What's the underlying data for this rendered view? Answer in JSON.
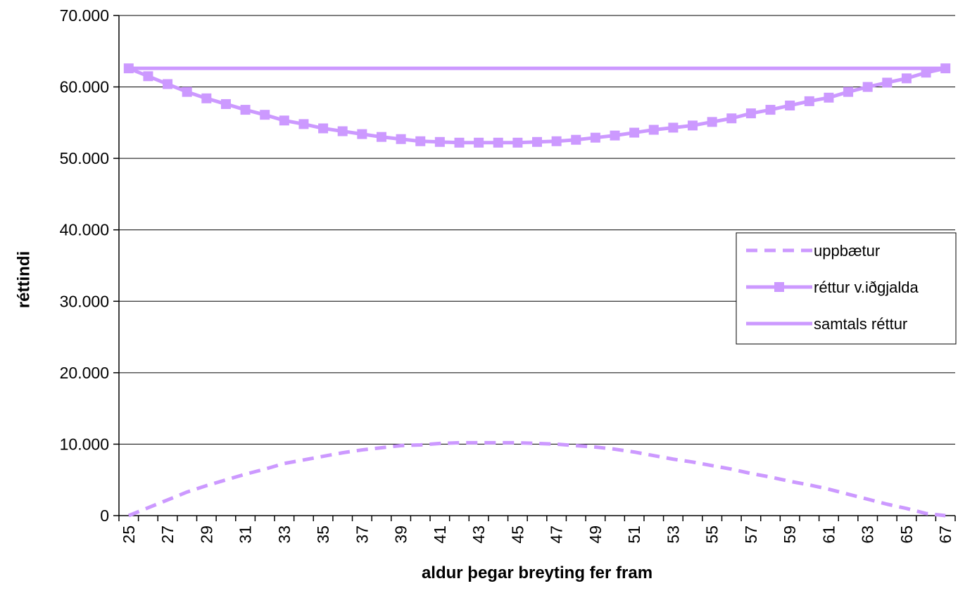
{
  "chart_data": {
    "type": "line",
    "title": "",
    "xlabel": "aldur þegar breyting fer fram",
    "ylabel": "réttindi",
    "ylim": [
      0,
      70000
    ],
    "grid": true,
    "legend_position": "right",
    "x": [
      25,
      26,
      27,
      28,
      29,
      30,
      31,
      32,
      33,
      34,
      35,
      36,
      37,
      38,
      39,
      40,
      41,
      42,
      43,
      44,
      45,
      46,
      47,
      48,
      49,
      50,
      51,
      52,
      53,
      54,
      55,
      56,
      57,
      58,
      59,
      60,
      61,
      62,
      63,
      64,
      65,
      66,
      67
    ],
    "x_tick_labels": [
      "25",
      "27",
      "29",
      "31",
      "33",
      "35",
      "37",
      "39",
      "41",
      "43",
      "45",
      "47",
      "49",
      "51",
      "53",
      "55",
      "57",
      "59",
      "61",
      "63",
      "65",
      "67"
    ],
    "y_tick_labels": [
      "0",
      "10.000",
      "20.000",
      "30.000",
      "40.000",
      "50.000",
      "60.000",
      "70.000"
    ],
    "y_ticks": [
      0,
      10000,
      20000,
      30000,
      40000,
      50000,
      60000,
      70000
    ],
    "series": [
      {
        "name": "uppbætur",
        "color": "#cc99ff",
        "style": "dashed",
        "values": [
          0,
          1100,
          2200,
          3300,
          4200,
          5000,
          5800,
          6500,
          7300,
          7800,
          8300,
          8800,
          9200,
          9500,
          9800,
          9900,
          10100,
          10200,
          10200,
          10200,
          10200,
          10100,
          10000,
          9800,
          9600,
          9300,
          8900,
          8400,
          7900,
          7500,
          7000,
          6500,
          5900,
          5400,
          4800,
          4300,
          3700,
          3000,
          2300,
          1600,
          1000,
          300,
          0
        ]
      },
      {
        "name": "réttur v.iðgjalda",
        "color": "#cc99ff",
        "style": "solid-square-markers",
        "values": [
          62600,
          61500,
          60400,
          59300,
          58400,
          57600,
          56800,
          56100,
          55300,
          54800,
          54200,
          53800,
          53400,
          53000,
          52700,
          52400,
          52300,
          52200,
          52200,
          52200,
          52200,
          52300,
          52400,
          52600,
          52900,
          53200,
          53600,
          54000,
          54300,
          54600,
          55100,
          55600,
          56300,
          56800,
          57400,
          58000,
          58500,
          59300,
          60000,
          60600,
          61200,
          62000,
          62600
        ]
      },
      {
        "name": "samtals réttur",
        "color": "#cc99ff",
        "style": "solid",
        "values": [
          62600,
          62600,
          62600,
          62600,
          62600,
          62600,
          62600,
          62600,
          62600,
          62600,
          62600,
          62600,
          62600,
          62600,
          62600,
          62600,
          62600,
          62600,
          62600,
          62600,
          62600,
          62600,
          62600,
          62600,
          62600,
          62600,
          62600,
          62600,
          62600,
          62600,
          62600,
          62600,
          62600,
          62600,
          62600,
          62600,
          62600,
          62600,
          62600,
          62600,
          62600,
          62600,
          62600
        ]
      }
    ]
  }
}
